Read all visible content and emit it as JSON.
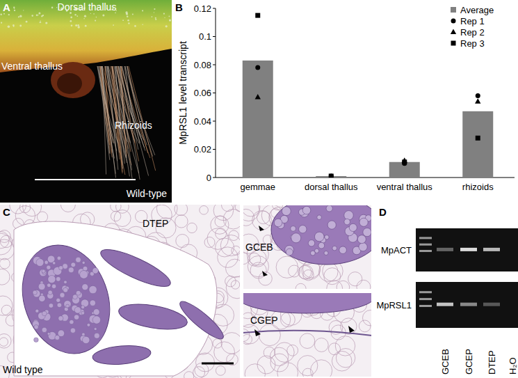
{
  "panel_a": {
    "letter": "A",
    "labels": [
      "Dorsal thallus",
      "Ventral thallus",
      "Rhizoids"
    ],
    "caption": "Wild-type"
  },
  "panel_b": {
    "letter": "B"
  },
  "chart_data": {
    "type": "bar",
    "y_label": "MpRSL1 level transcript",
    "categories": [
      "gemmae",
      "dorsal thallus",
      "ventral thallus",
      "rhizoids"
    ],
    "series": [
      {
        "name": "Average",
        "type": "bar",
        "color": "#808080",
        "values": [
          0.083,
          0.001,
          0.011,
          0.047
        ]
      },
      {
        "name": "Rep 1",
        "type": "scatter",
        "marker": "circle",
        "color": "#000000",
        "values": [
          0.078,
          0.001,
          0.01,
          0.058
        ]
      },
      {
        "name": "Rep 2",
        "type": "scatter",
        "marker": "triangle",
        "color": "#000000",
        "values": [
          0.057,
          0.0005,
          0.012,
          0.054
        ]
      },
      {
        "name": "Rep 3",
        "type": "scatter",
        "marker": "square",
        "color": "#000000",
        "values": [
          0.115,
          0.001,
          0.011,
          0.028
        ]
      }
    ],
    "ylim": [
      0,
      0.12
    ],
    "yticks": [
      0,
      0.02,
      0.04,
      0.06,
      0.08,
      0.1,
      0.12
    ],
    "legend": "top-right",
    "grid": false
  },
  "panel_c": {
    "letter": "C",
    "labels": [
      "DTEP",
      "GCEB",
      "CGEP"
    ],
    "caption": "Wild type"
  },
  "panel_d": {
    "letter": "D",
    "rows": [
      "MpACT",
      "MpRSL1"
    ],
    "lanes": [
      "GCEB",
      "GCEP",
      "DTEP",
      "H₂O"
    ]
  }
}
